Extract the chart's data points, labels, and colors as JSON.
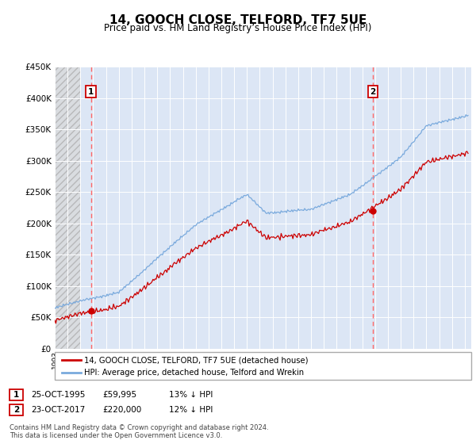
{
  "title": "14, GOOCH CLOSE, TELFORD, TF7 5UE",
  "subtitle": "Price paid vs. HM Land Registry’s House Price Index (HPI)",
  "legend_line1": "14, GOOCH CLOSE, TELFORD, TF7 5UE (detached house)",
  "legend_line2": "HPI: Average price, detached house, Telford and Wrekin",
  "sale1_date": "25-OCT-1995",
  "sale1_price": 59995,
  "sale1_label": "1",
  "sale1_note": "13% ↓ HPI",
  "sale2_date": "23-OCT-2017",
  "sale2_price": 220000,
  "sale2_label": "2",
  "sale2_note": "12% ↓ HPI",
  "footnote1": "Contains HM Land Registry data © Crown copyright and database right 2024.",
  "footnote2": "This data is licensed under the Open Government Licence v3.0.",
  "ylim": [
    0,
    450000
  ],
  "yticks": [
    0,
    50000,
    100000,
    150000,
    200000,
    250000,
    300000,
    350000,
    400000,
    450000
  ],
  "plot_bg": "#dce6f5",
  "red_line_color": "#cc0000",
  "blue_line_color": "#7aaadd",
  "vline_color": "#ff6666",
  "sale1_x": 1995.82,
  "sale2_x": 2017.82,
  "xmin": 1993.0,
  "xmax": 2025.5,
  "hatch_end": 1995.0
}
